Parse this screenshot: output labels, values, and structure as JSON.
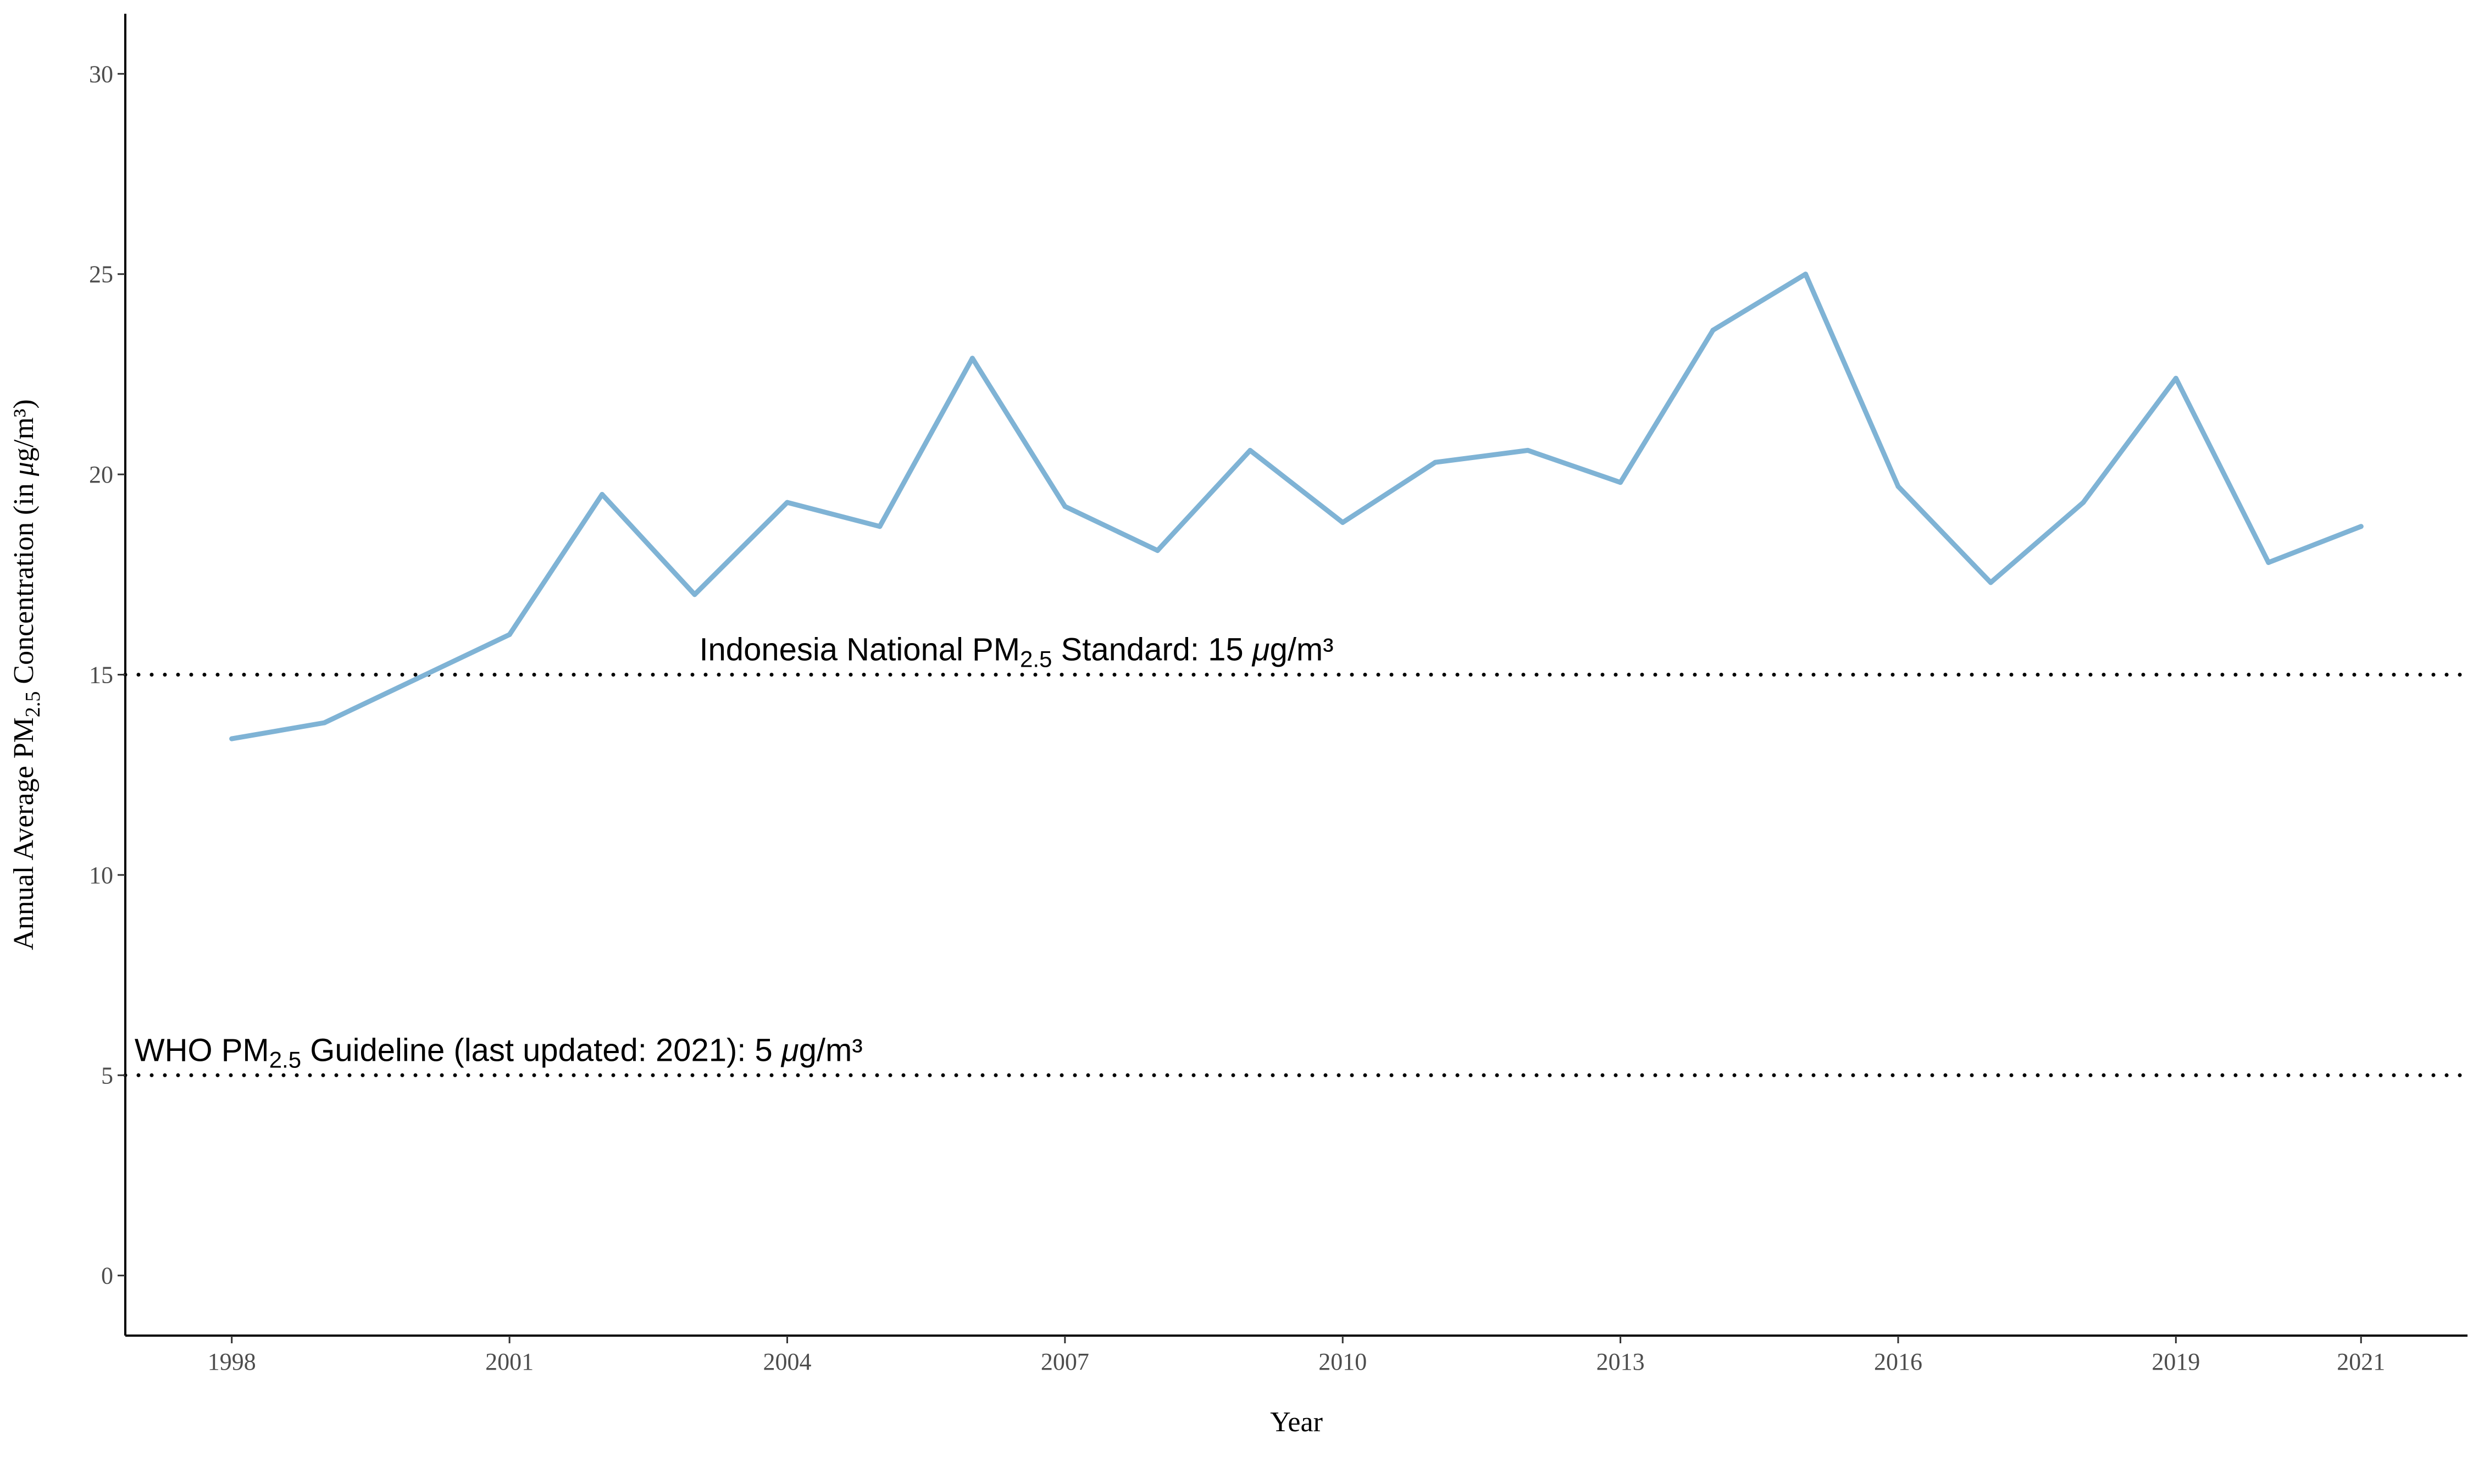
{
  "chart_data": {
    "type": "line",
    "title": "",
    "xlabel": "Year",
    "ylabel": {
      "main": "Annual Average PM",
      "sub": "2.5",
      "tail": " Concentration (in ",
      "mu": "μ",
      "unit": "g/m³)"
    },
    "xlim": [
      1996.85,
      2022.15
    ],
    "ylim": [
      -1.5,
      31.5
    ],
    "x_ticks": [
      1998,
      2001,
      2004,
      2007,
      2010,
      2013,
      2016,
      2019,
      2021
    ],
    "x_tick_labels": [
      "1998",
      "2001",
      "2004",
      "2007",
      "2010",
      "2013",
      "2016",
      "2019",
      "2021"
    ],
    "y_ticks": [
      0,
      5,
      10,
      15,
      20,
      25,
      30
    ],
    "y_tick_labels": [
      "0",
      "5",
      "10",
      "15",
      "20",
      "25",
      "30"
    ],
    "grid": false,
    "legend": "none",
    "series": [
      {
        "color": "#7fb3d5",
        "x": [
          1998,
          1999,
          2000,
          2001,
          2002,
          2003,
          2004,
          2005,
          2006,
          2007,
          2008,
          2009,
          2010,
          2011,
          2012,
          2013,
          2014,
          2015,
          2016,
          2017,
          2018,
          2019,
          2020,
          2021
        ],
        "values": [
          13.4,
          13.8,
          14.9,
          16.0,
          19.5,
          17.0,
          19.3,
          18.7,
          22.9,
          19.2,
          18.1,
          20.6,
          18.8,
          20.3,
          20.6,
          19.8,
          23.6,
          25.0,
          19.7,
          17.3,
          19.3,
          22.4,
          17.8,
          18.7
        ]
      }
    ],
    "reference_lines": [
      {
        "value": 15,
        "label": {
          "pre": "Indonesia National PM",
          "sub": "2.5",
          "mid": " Standard: 15 ",
          "mu": "μ",
          "post": "g/m³"
        },
        "label_anchor_x": 2003.05
      },
      {
        "value": 5,
        "label": {
          "pre": "WHO PM",
          "sub": "2.5",
          "mid": " Guideline (last updated: 2021): 5 ",
          "mu": "μ",
          "post": "g/m³"
        },
        "label_anchor_x": 1996.95
      }
    ],
    "colors": {
      "line": "#7fb3d5",
      "reference": "#000000",
      "axis": "#000000"
    }
  }
}
